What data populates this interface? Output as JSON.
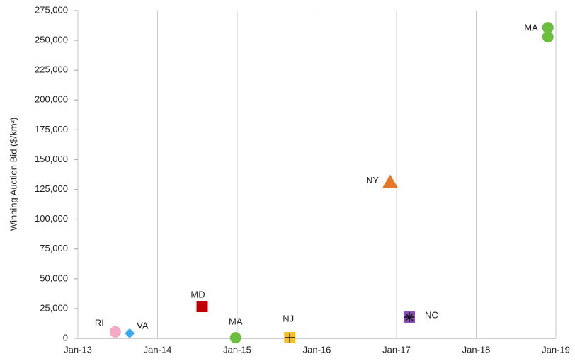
{
  "chart_data": {
    "type": "scatter",
    "y_label": "Winning Auction Bid ($/km²)",
    "xlim": [
      2013,
      2019
    ],
    "xticks": [
      {
        "value": 2013,
        "label": "Jan-13"
      },
      {
        "value": 2014,
        "label": "Jan-14"
      },
      {
        "value": 2015,
        "label": "Jan-15"
      },
      {
        "value": 2016,
        "label": "Jan-16"
      },
      {
        "value": 2017,
        "label": "Jan-17"
      },
      {
        "value": 2018,
        "label": "Jan-18"
      },
      {
        "value": 2019,
        "label": "Jan-19"
      }
    ],
    "ylim": [
      0,
      275000
    ],
    "yticks": [
      0,
      {
        "value": 25000,
        "label": "25,000"
      },
      {
        "value": 50000,
        "label": "50,000"
      },
      {
        "value": 75000,
        "label": "75,000"
      },
      {
        "value": 100000,
        "label": "100,000"
      },
      {
        "value": 125000,
        "label": "125,000"
      },
      {
        "value": 150000,
        "label": "150,000"
      },
      {
        "value": 175000,
        "label": "175,000"
      },
      {
        "value": 200000,
        "label": "200,000"
      },
      {
        "value": 225000,
        "label": "225,000"
      },
      {
        "value": 250000,
        "label": "250,000"
      },
      {
        "value": 275000,
        "label": "275,000"
      }
    ],
    "xgrid": true,
    "series": [
      {
        "name": "RI",
        "color": "#f7a8c4",
        "marker": "circle",
        "x": [
          2013.47
        ],
        "values": [
          5400
        ]
      },
      {
        "name": "VA",
        "color": "#3aa8f0",
        "marker": "diamond",
        "x": [
          2013.65
        ],
        "values": [
          4200
        ]
      },
      {
        "name": "MD",
        "color": "#c00000",
        "marker": "square",
        "x": [
          2014.56
        ],
        "values": [
          26700
        ]
      },
      {
        "name": "MA",
        "color": "#6cbf3c",
        "marker": "circle",
        "x": [
          2014.98
        ],
        "values": [
          500
        ]
      },
      {
        "name": "NJ",
        "color": "#f5c022",
        "marker": "square-plus",
        "x": [
          2015.66
        ],
        "values": [
          600
        ]
      },
      {
        "name": "NY",
        "color": "#e57828",
        "marker": "triangle",
        "x": [
          2016.92
        ],
        "values": [
          131000
        ]
      },
      {
        "name": "NC",
        "color": "#8a4fb5",
        "marker": "square-star",
        "x": [
          2017.16
        ],
        "values": [
          17800
        ]
      },
      {
        "name": "MA",
        "color": "#6cbf3c",
        "marker": "circle",
        "x": [
          2018.9,
          2018.9
        ],
        "values": [
          260700,
          253000
        ]
      }
    ]
  }
}
